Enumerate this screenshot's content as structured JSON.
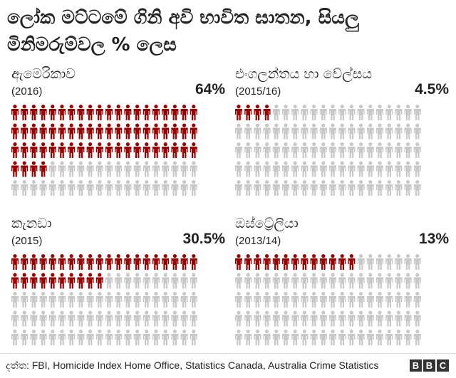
{
  "title": "ලෝක මට්ටමේ ගිනි අවි භාවිත ඝාතන, සියලු මිනිමරුම්වල % ලෙස",
  "colors": {
    "highlight": "#990000",
    "base": "#c8c8c8"
  },
  "chart_data": [
    {
      "type": "pictogram",
      "country": "ඇමෙරිකාව",
      "year": "(2016)",
      "percent_label": "64%",
      "value": 64,
      "total_icons": 100
    },
    {
      "type": "pictogram",
      "country": "එංගලන්තය හා වේල්සය",
      "year": "(2015/16)",
      "percent_label": "4.5%",
      "value": 4.5,
      "total_icons": 100
    },
    {
      "type": "pictogram",
      "country": "කැනඩා",
      "year": "(2015)",
      "percent_label": "30.5%",
      "value": 30.5,
      "total_icons": 100
    },
    {
      "type": "pictogram",
      "country": "ඔස්ට්‍රේලියා",
      "year": "(2013/14)",
      "percent_label": "13%",
      "value": 13,
      "total_icons": 100
    }
  ],
  "footer": {
    "source": "දත්ත: FBI, Homicide Index Home Office, Statistics Canada, Australia Crime Statistics",
    "logo_letters": [
      "B",
      "B",
      "C"
    ]
  }
}
